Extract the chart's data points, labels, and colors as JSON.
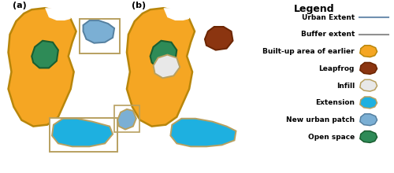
{
  "bg_color": "#ffffff",
  "title": "Legend",
  "legend_items": [
    {
      "label": "Urban Extent",
      "type": "line",
      "color": "#7090b0",
      "lw": 1.5
    },
    {
      "label": "Buffer extent",
      "type": "line",
      "color": "#909090",
      "lw": 1.5
    },
    {
      "label": "Built-up area of earlier",
      "type": "blob",
      "color": "#f5a623",
      "edge": "#b8860b"
    },
    {
      "label": "Leapfrog",
      "type": "blob",
      "color": "#8b3510",
      "edge": "#6b2500"
    },
    {
      "label": "Infill",
      "type": "blob",
      "color": "#e8e8e8",
      "edge": "#b8a060"
    },
    {
      "label": "Extension",
      "type": "blob",
      "color": "#1eb0e0",
      "edge": "#b8a060"
    },
    {
      "label": "New urban patch",
      "type": "blob",
      "color": "#7bafd4",
      "edge": "#5580a0"
    },
    {
      "label": "Open space",
      "type": "blob",
      "color": "#2e8b57",
      "edge": "#1a5e30"
    }
  ],
  "yellow": "#f5a623",
  "yellow_edge": "#b8860b",
  "green": "#2e8b57",
  "green_edge": "#1a5e30",
  "blue_ext": "#1eb0e0",
  "blue_patch": "#7bafd4",
  "blue_patch_edge": "#5580a0",
  "brown": "#8b3510",
  "brown_edge": "#6b2500",
  "infill": "#e8e8e8",
  "infill_edge": "#b8a060",
  "buffer_edge": "#b8a060"
}
